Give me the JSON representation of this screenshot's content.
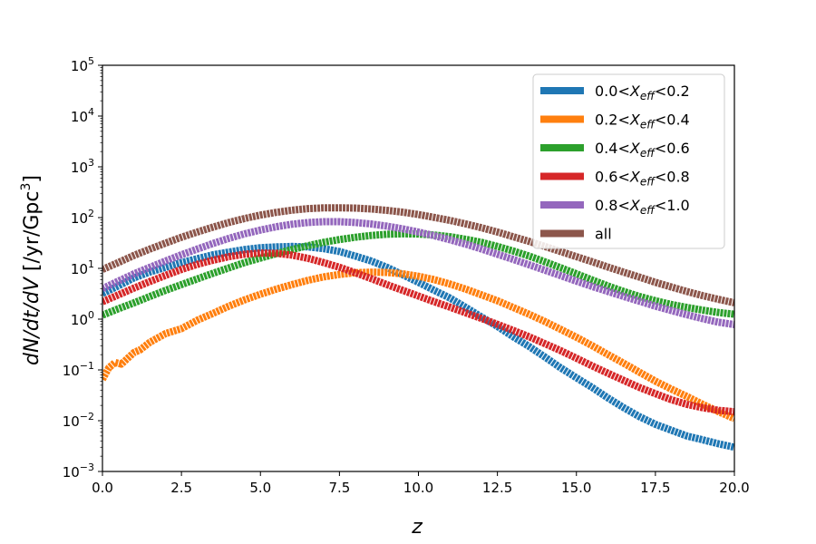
{
  "chart_data": {
    "type": "line",
    "xscale": "linear",
    "yscale": "log",
    "xlim": [
      0,
      20
    ],
    "ylim_exponents": [
      -3,
      5
    ],
    "xticks": [
      "0.0",
      "2.5",
      "5.0",
      "7.5",
      "10.0",
      "12.5",
      "15.0",
      "17.5",
      "20.0"
    ],
    "xtick_values": [
      0,
      2.5,
      5,
      7.5,
      10,
      12.5,
      15,
      17.5,
      20
    ],
    "yticks": [
      {
        "base": "10",
        "exp": "−3"
      },
      {
        "base": "10",
        "exp": "−2"
      },
      {
        "base": "10",
        "exp": "−1"
      },
      {
        "base": "10",
        "exp": "0"
      },
      {
        "base": "10",
        "exp": "1"
      },
      {
        "base": "10",
        "exp": "2"
      },
      {
        "base": "10",
        "exp": "3"
      },
      {
        "base": "10",
        "exp": "4"
      },
      {
        "base": "10",
        "exp": "5"
      }
    ],
    "xlabel": "z",
    "ylabel_parts": {
      "main": "dN/dt/dV",
      "unit": " [/yr/Gpc",
      "unit_exp": "3",
      "close": "]"
    },
    "legend_location": "upper right",
    "series": [
      {
        "name": "0.0<X_eff<0.2",
        "label_pre": "0.0<",
        "label_var": "X",
        "label_sub": "eff",
        "label_post": "<0.2",
        "color": "#1f77b4",
        "x": [
          0,
          0.5,
          1,
          1.5,
          2,
          2.5,
          3,
          3.5,
          4,
          4.5,
          5,
          5.5,
          6,
          6.5,
          7,
          7.5,
          8,
          8.5,
          9,
          9.5,
          10,
          10.5,
          11,
          11.5,
          12,
          12.5,
          13,
          13.5,
          14,
          14.5,
          15,
          15.5,
          16,
          16.5,
          17,
          17.5,
          18,
          18.5,
          19,
          19.5,
          20
        ],
        "y": [
          3.2,
          4.5,
          6.5,
          8.5,
          10.5,
          13,
          15.5,
          18.5,
          21,
          23.5,
          25.5,
          26.5,
          27,
          26.5,
          24.5,
          21.5,
          17.5,
          14,
          10.5,
          7.5,
          5.3,
          3.7,
          2.6,
          1.7,
          1.1,
          0.72,
          0.45,
          0.29,
          0.18,
          0.11,
          0.07,
          0.045,
          0.028,
          0.018,
          0.012,
          0.0085,
          0.0065,
          0.005,
          0.0042,
          0.0035,
          0.003
        ]
      },
      {
        "name": "0.2<X_eff<0.4",
        "label_pre": "0.2<",
        "label_var": "X",
        "label_sub": "eff",
        "label_post": "<0.4",
        "color": "#ff7f0e",
        "x": [
          0,
          0.2,
          0.4,
          0.6,
          0.8,
          1.0,
          1.2,
          1.5,
          2,
          2.5,
          3,
          3.5,
          4,
          4.5,
          5,
          5.5,
          6,
          6.5,
          7,
          7.5,
          8,
          8.5,
          9,
          9.5,
          10,
          10.5,
          11,
          11.5,
          12,
          12.5,
          13,
          13.5,
          14,
          14.5,
          15,
          15.5,
          16,
          16.5,
          17,
          17.5,
          18,
          18.5,
          19,
          19.5,
          20
        ],
        "y": [
          0.065,
          0.11,
          0.14,
          0.13,
          0.17,
          0.22,
          0.25,
          0.35,
          0.52,
          0.65,
          0.95,
          1.3,
          1.8,
          2.4,
          3.1,
          3.9,
          4.8,
          5.8,
          6.8,
          7.6,
          8.2,
          8.4,
          8.3,
          7.8,
          7.0,
          6.0,
          4.9,
          3.9,
          3.0,
          2.3,
          1.7,
          1.25,
          0.9,
          0.63,
          0.44,
          0.3,
          0.2,
          0.135,
          0.09,
          0.06,
          0.042,
          0.03,
          0.021,
          0.015,
          0.011
        ]
      },
      {
        "name": "0.4<X_eff<0.6",
        "label_pre": "0.4<",
        "label_var": "X",
        "label_sub": "eff",
        "label_post": "<0.6",
        "color": "#2ca02c",
        "x": [
          0,
          0.5,
          1,
          1.5,
          2,
          2.5,
          3,
          3.5,
          4,
          4.5,
          5,
          5.5,
          6,
          6.5,
          7,
          7.5,
          8,
          8.5,
          9,
          9.5,
          10,
          10.5,
          11,
          11.5,
          12,
          12.5,
          13,
          13.5,
          14,
          14.5,
          15,
          15.5,
          16,
          16.5,
          17,
          17.5,
          18,
          18.5,
          19,
          19.5,
          20
        ],
        "y": [
          1.2,
          1.6,
          2.1,
          2.8,
          3.7,
          4.8,
          6.2,
          8.0,
          10.2,
          13,
          16,
          19.5,
          23.5,
          28,
          32.5,
          37,
          41,
          44.5,
          47,
          48,
          47.5,
          45.5,
          42,
          37.5,
          32.5,
          27,
          22,
          17.5,
          13.5,
          10.3,
          7.8,
          5.9,
          4.5,
          3.5,
          2.8,
          2.3,
          1.95,
          1.7,
          1.5,
          1.35,
          1.25
        ]
      },
      {
        "name": "0.6<X_eff<0.8",
        "label_pre": "0.6<",
        "label_var": "X",
        "label_sub": "eff",
        "label_post": "<0.8",
        "color": "#d62728",
        "x": [
          0,
          0.5,
          1,
          1.5,
          2,
          2.5,
          3,
          3.5,
          4,
          4.5,
          5,
          5.5,
          6,
          6.5,
          7,
          7.5,
          8,
          8.5,
          9,
          9.5,
          10,
          10.5,
          11,
          11.5,
          12,
          12.5,
          13,
          13.5,
          14,
          14.5,
          15,
          15.5,
          16,
          16.5,
          17,
          17.5,
          18,
          18.5,
          19,
          19.5,
          20
        ],
        "y": [
          2.2,
          3.0,
          4.1,
          5.5,
          7.3,
          9.5,
          12,
          14.5,
          17,
          19,
          20,
          19.8,
          18.2,
          15.8,
          13,
          10.5,
          8.2,
          6.3,
          4.8,
          3.7,
          2.85,
          2.2,
          1.72,
          1.33,
          1.03,
          0.79,
          0.6,
          0.45,
          0.33,
          0.24,
          0.17,
          0.12,
          0.086,
          0.062,
          0.045,
          0.034,
          0.026,
          0.021,
          0.018,
          0.016,
          0.015
        ]
      },
      {
        "name": "0.8<X_eff<1.0",
        "label_pre": "0.8<",
        "label_var": "X",
        "label_sub": "eff",
        "label_post": "<1.0",
        "color": "#9467bd",
        "x": [
          0,
          0.5,
          1,
          1.5,
          2,
          2.5,
          3,
          3.5,
          4,
          4.5,
          5,
          5.5,
          6,
          6.5,
          7,
          7.5,
          8,
          8.5,
          9,
          9.5,
          10,
          10.5,
          11,
          11.5,
          12,
          12.5,
          13,
          13.5,
          14,
          14.5,
          15,
          15.5,
          16,
          16.5,
          17,
          17.5,
          18,
          18.5,
          19,
          19.5,
          20
        ],
        "y": [
          4.0,
          5.6,
          7.8,
          10.5,
          14,
          18.5,
          24,
          31,
          39,
          48,
          57,
          66,
          74,
          80,
          83,
          83,
          80,
          75,
          68,
          60,
          52,
          44,
          36.5,
          30,
          24,
          19,
          15,
          11.8,
          9.2,
          7.2,
          5.6,
          4.4,
          3.5,
          2.8,
          2.25,
          1.8,
          1.48,
          1.22,
          1.02,
          0.87,
          0.78
        ]
      },
      {
        "name": "all",
        "label_pre": "all",
        "label_var": "",
        "label_sub": "",
        "label_post": "",
        "color": "#8c564b",
        "x": [
          0,
          0.5,
          1,
          1.5,
          2,
          2.5,
          3,
          3.5,
          4,
          4.5,
          5,
          5.5,
          6,
          6.5,
          7,
          7.5,
          8,
          8.5,
          9,
          9.5,
          10,
          10.5,
          11,
          11.5,
          12,
          12.5,
          13,
          13.5,
          14,
          14.5,
          15,
          15.5,
          16,
          16.5,
          17,
          17.5,
          18,
          18.5,
          19,
          19.5,
          20
        ],
        "y": [
          9.5,
          13,
          18,
          24,
          31.5,
          41,
          52,
          65,
          80,
          96,
          112,
          127,
          140,
          150,
          155,
          156,
          154,
          148,
          139,
          128,
          115,
          101,
          88,
          75,
          63,
          52,
          42,
          34,
          27,
          21.5,
          17,
          13.5,
          10.6,
          8.4,
          6.7,
          5.3,
          4.3,
          3.5,
          2.9,
          2.45,
          2.1
        ]
      }
    ]
  }
}
